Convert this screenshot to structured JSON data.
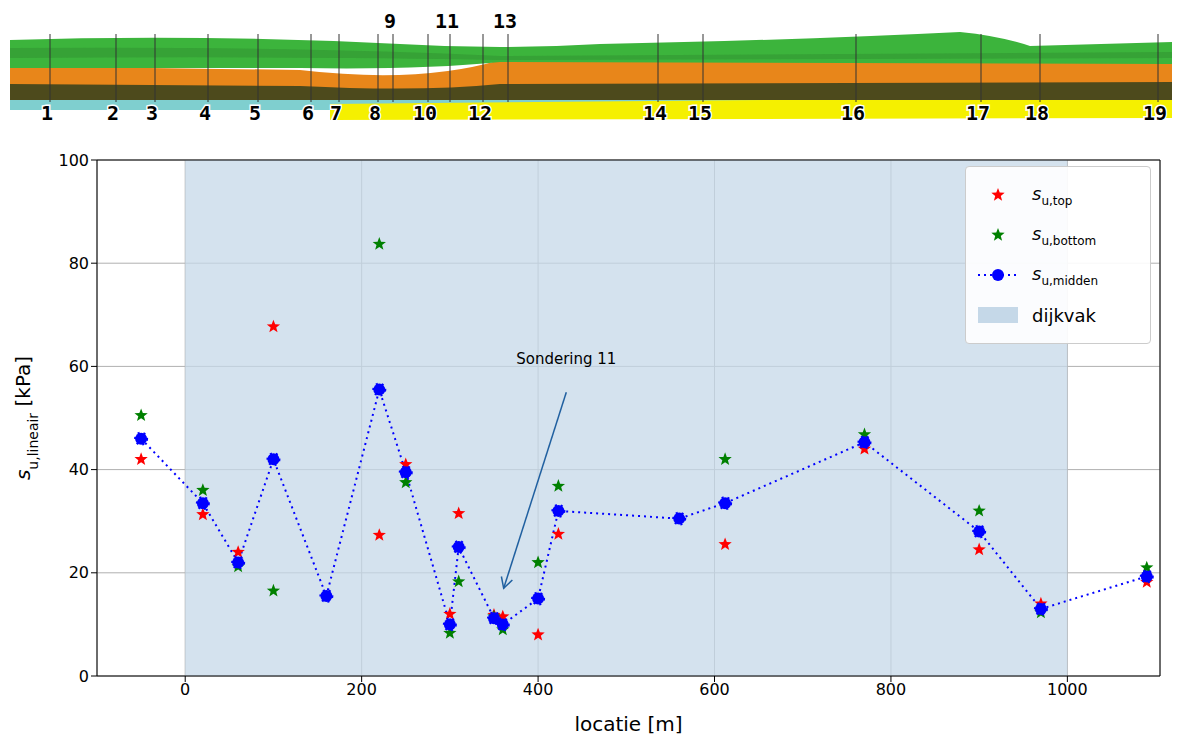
{
  "chart_data": {
    "type": "scatter",
    "xlabel": "locatie [m]",
    "ylabel": "su,lineair [kPa]",
    "xlim": [
      -100,
      1105
    ],
    "xticks": [
      0,
      200,
      400,
      600,
      800,
      1000
    ],
    "ylim": [
      0,
      100
    ],
    "yticks": [
      0,
      20,
      40,
      60,
      80,
      100
    ],
    "grid": true,
    "legend": "upper right",
    "series": [
      {
        "name": "su,top",
        "type": "scatter",
        "marker": "star",
        "color": "#ff0000",
        "x": [
          -50,
          20,
          60,
          100,
          220,
          250,
          300,
          310,
          350,
          360,
          400,
          423,
          612,
          770,
          900,
          970,
          1090
        ],
        "values": [
          42,
          31.3,
          24,
          67.7,
          27.3,
          41,
          12,
          31.5,
          11.8,
          11.5,
          8,
          27.5,
          25.5,
          44,
          24.5,
          14,
          18.2
        ]
      },
      {
        "name": "su,bottom",
        "type": "scatter",
        "marker": "star",
        "color": "#008000",
        "x": [
          -50,
          20,
          60,
          100,
          220,
          250,
          300,
          310,
          350,
          360,
          400,
          423,
          612,
          770,
          900,
          970,
          1090
        ],
        "values": [
          50.5,
          36,
          21.2,
          16.5,
          83.7,
          37.5,
          8.3,
          18.3,
          11.5,
          9,
          22,
          36.8,
          42,
          46.8,
          32,
          12.3,
          21
        ]
      },
      {
        "name": "su,midden",
        "type": "line",
        "marker": "circle",
        "line_style": "dotted",
        "color": "#0000ff",
        "x": [
          -50,
          20,
          60,
          100,
          160,
          220,
          250,
          300,
          310,
          350,
          360,
          400,
          423,
          560,
          612,
          770,
          900,
          970,
          1090
        ],
        "values": [
          46,
          33.5,
          22,
          42,
          15.5,
          55.5,
          39.5,
          10,
          25,
          11.2,
          10,
          15,
          32,
          30.5,
          33.5,
          45.3,
          28,
          13,
          19.3
        ]
      }
    ],
    "shaded_region": {
      "name": "dijkvak",
      "x": [
        0,
        1000
      ],
      "color": "#c5d8e8"
    },
    "annotations": [
      {
        "text": "Sondering 11",
        "xy": [
          361,
          17
        ],
        "xytext": [
          432,
          55
        ]
      }
    ],
    "profile_labels": [
      "1",
      "2",
      "3",
      "4",
      "5",
      "6",
      "7",
      "8",
      "9",
      "10",
      "11",
      "12",
      "13",
      "14",
      "15",
      "16",
      "17",
      "18",
      "19"
    ]
  }
}
